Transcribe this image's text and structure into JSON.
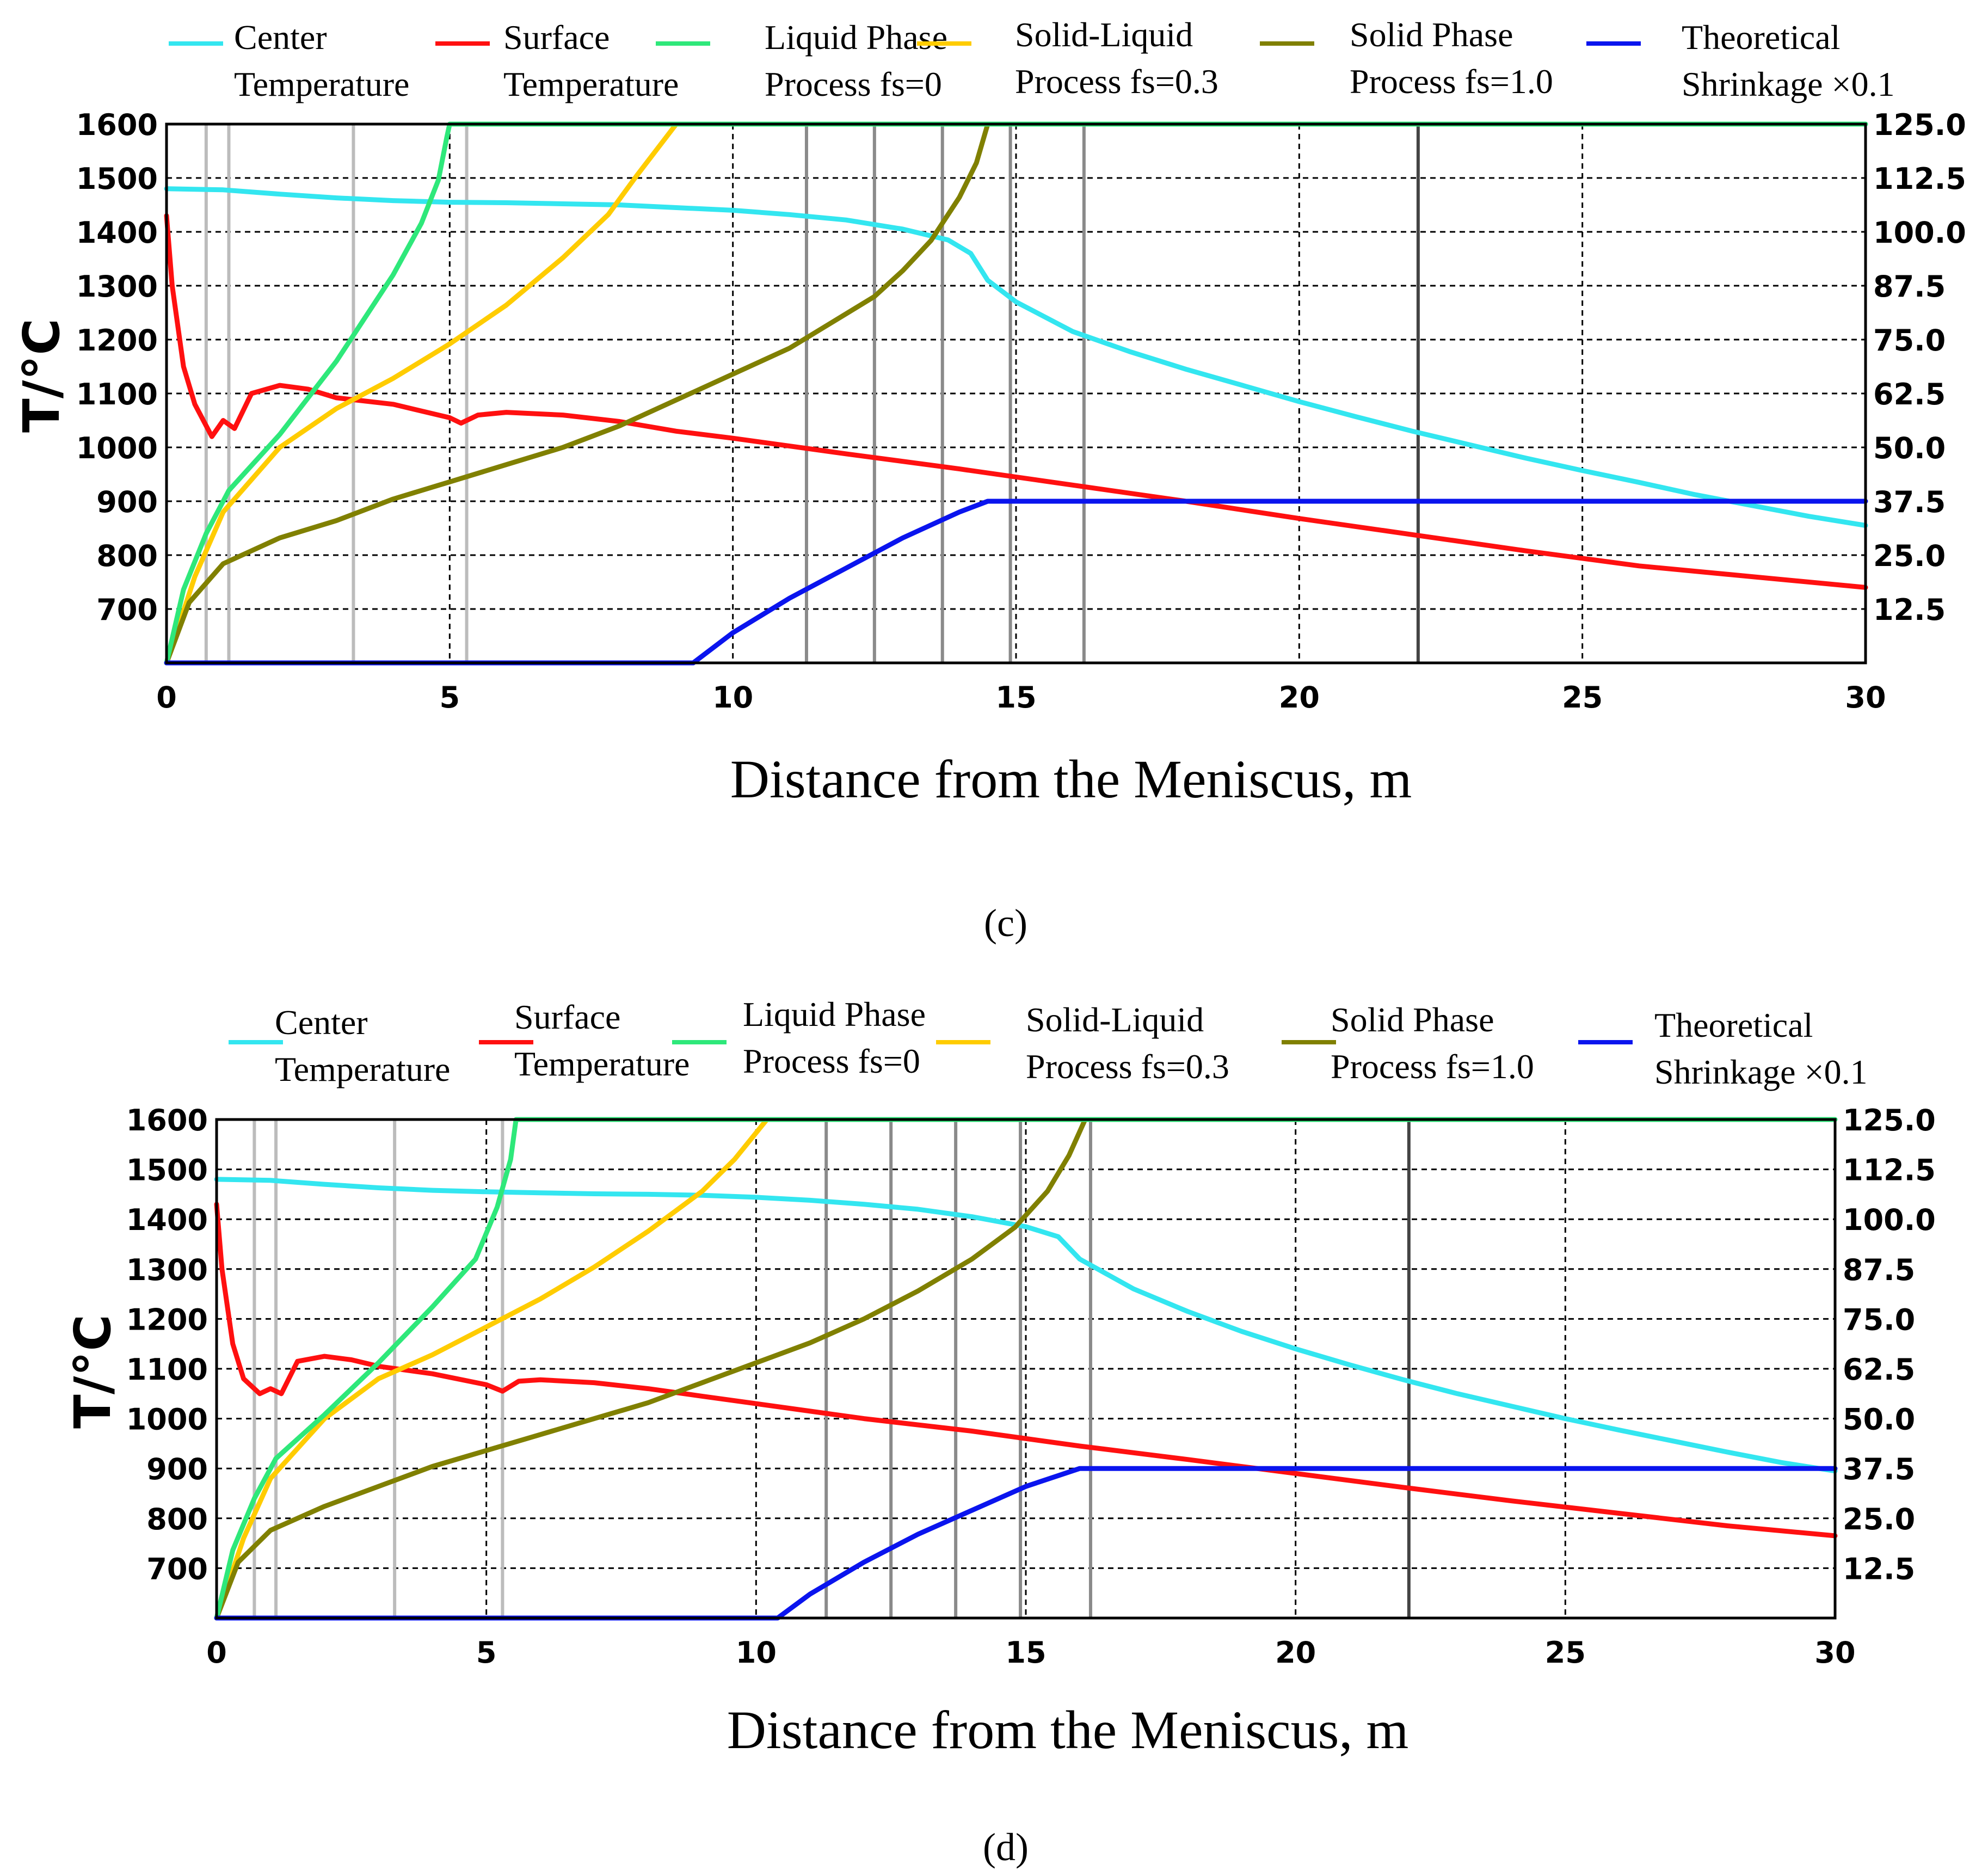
{
  "figure": {
    "panel_labels": [
      "(c)",
      "(d)"
    ]
  },
  "chart_data": [
    {
      "type": "line",
      "panel": "(c)",
      "title": "",
      "xlabel": "Distance from the Meniscus, m",
      "ylabel": "T/°C",
      "y2label": "",
      "xlim": [
        0,
        30
      ],
      "ylim": [
        600,
        1600
      ],
      "y2lim": [
        0,
        125
      ],
      "x_ticks": [
        0,
        5,
        10,
        15,
        20,
        25,
        30
      ],
      "y_ticks": [
        700,
        800,
        900,
        1000,
        1100,
        1200,
        1300,
        1400,
        1500,
        1600
      ],
      "y2_ticks": [
        "12.5",
        "25.0",
        "37.5",
        "50.0",
        "62.5",
        "75.0",
        "87.5",
        "100.0",
        "112.5",
        "125.0"
      ],
      "grid": "dashed",
      "legend_position": "top",
      "light_vlines": [
        0.7,
        1.1,
        3.3,
        5.3
      ],
      "dark_vlines": [
        11.3,
        12.5,
        13.7,
        14.9,
        16.2
      ],
      "black_vline": 22.1,
      "series": [
        {
          "name": "Center Temperature",
          "color": "#33e6f0",
          "axis": "left",
          "x": [
            0,
            1,
            2,
            3,
            4,
            5,
            6,
            7,
            8,
            9,
            10,
            11,
            12,
            13,
            13.8,
            14.2,
            14.5,
            15,
            16,
            17,
            18,
            19,
            20,
            21,
            22,
            23,
            24,
            25,
            26,
            27,
            28,
            29,
            30
          ],
          "y": [
            1480,
            1478,
            1470,
            1463,
            1458,
            1455,
            1454,
            1452,
            1450,
            1445,
            1440,
            1432,
            1422,
            1405,
            1385,
            1360,
            1310,
            1270,
            1215,
            1178,
            1145,
            1115,
            1085,
            1057,
            1030,
            1005,
            980,
            957,
            935,
            912,
            892,
            872,
            855
          ]
        },
        {
          "name": "Surface Temperature",
          "color": "#ff1010",
          "axis": "left",
          "x": [
            0,
            0.1,
            0.3,
            0.5,
            0.8,
            1.0,
            1.2,
            1.5,
            2.0,
            2.5,
            3,
            4,
            5,
            5.2,
            5.5,
            6,
            7,
            8,
            9,
            10,
            12,
            14,
            16,
            18,
            20,
            22,
            24,
            26,
            28,
            30
          ],
          "y": [
            1430,
            1300,
            1150,
            1080,
            1020,
            1050,
            1035,
            1100,
            1115,
            1108,
            1092,
            1080,
            1055,
            1045,
            1060,
            1065,
            1060,
            1048,
            1030,
            1017,
            988,
            960,
            930,
            900,
            868,
            838,
            808,
            780,
            760,
            740
          ]
        },
        {
          "name": "Liquid Phase Process fs=0",
          "color": "#2ee87a",
          "axis": "right",
          "x": [
            0,
            0.3,
            0.7,
            1.1,
            2.0,
            3.0,
            4.0,
            4.5,
            4.8,
            4.95,
            5.0,
            30
          ],
          "y2": [
            0,
            17,
            30,
            40,
            53,
            70,
            90,
            102,
            112,
            122,
            125,
            125
          ]
        },
        {
          "name": "Solid-Liquid Process fs=0.3",
          "color": "#ffcc00",
          "axis": "right",
          "x": [
            0,
            0.5,
            1,
            2,
            3,
            4,
            5,
            6,
            7,
            7.8,
            8.3,
            9.0
          ],
          "y2": [
            0,
            20,
            35,
            50,
            59,
            66,
            74,
            83,
            94,
            104,
            113,
            125
          ]
        },
        {
          "name": "Solid Phase Process fs=1.0",
          "color": "#808000",
          "axis": "right",
          "x": [
            0,
            0.4,
            1.0,
            2,
            3,
            4,
            5,
            6,
            7,
            8,
            9,
            10,
            11,
            12,
            12.5,
            13,
            13.5,
            14.0,
            14.3,
            14.5
          ],
          "y2": [
            0,
            14,
            23,
            29,
            33,
            38,
            42,
            46,
            50,
            55,
            61,
            67,
            73,
            81,
            85,
            91,
            98,
            108,
            116,
            125
          ]
        },
        {
          "name": "Theoretical Shrinkage ×0.1",
          "color": "#0a14ee",
          "axis": "right",
          "x": [
            0,
            9.3,
            10,
            11,
            12,
            13,
            14,
            14.5,
            30
          ],
          "y2": [
            0,
            0,
            7,
            15,
            22,
            29,
            35,
            37.5,
            37.5
          ]
        }
      ]
    },
    {
      "type": "line",
      "panel": "(d)",
      "title": "",
      "xlabel": "Distance from the Meniscus, m",
      "ylabel": "T/°C",
      "y2label": "",
      "xlim": [
        0,
        30
      ],
      "ylim": [
        600,
        1600
      ],
      "y2lim": [
        0,
        125
      ],
      "x_ticks": [
        0,
        5,
        10,
        15,
        20,
        25,
        30
      ],
      "y_ticks": [
        700,
        800,
        900,
        1000,
        1100,
        1200,
        1300,
        1400,
        1500,
        1600
      ],
      "y2_ticks": [
        "12.5",
        "25.0",
        "37.5",
        "50.0",
        "62.5",
        "75.0",
        "87.5",
        "100.0",
        "112.5",
        "125.0"
      ],
      "grid": "dashed",
      "legend_position": "top",
      "light_vlines": [
        0.7,
        1.1,
        3.3,
        5.3
      ],
      "dark_vlines": [
        11.3,
        12.5,
        13.7,
        14.9,
        16.2
      ],
      "black_vline": 22.1,
      "series": [
        {
          "name": "Center Temperature",
          "color": "#33e6f0",
          "axis": "left",
          "x": [
            0,
            1,
            2,
            3,
            4,
            5,
            6,
            7,
            8,
            9,
            10,
            11,
            12,
            13,
            14,
            15,
            15.6,
            16,
            17,
            18,
            19,
            20,
            21,
            22,
            23,
            24,
            25,
            26,
            27,
            28,
            29,
            30
          ],
          "y": [
            1480,
            1478,
            1470,
            1463,
            1458,
            1455,
            1453,
            1451,
            1450,
            1448,
            1444,
            1438,
            1430,
            1420,
            1405,
            1385,
            1365,
            1320,
            1260,
            1215,
            1175,
            1140,
            1108,
            1078,
            1050,
            1025,
            1000,
            977,
            955,
            933,
            912,
            895
          ]
        },
        {
          "name": "Surface Temperature",
          "color": "#ff1010",
          "axis": "left",
          "x": [
            0,
            0.1,
            0.3,
            0.5,
            0.8,
            1.0,
            1.2,
            1.5,
            2.0,
            2.5,
            3,
            4,
            5,
            5.3,
            5.6,
            6,
            7,
            8,
            9,
            10,
            12,
            14,
            16,
            18,
            20,
            22,
            24,
            26,
            28,
            30
          ],
          "y": [
            1430,
            1300,
            1150,
            1080,
            1050,
            1060,
            1050,
            1115,
            1125,
            1118,
            1105,
            1090,
            1068,
            1055,
            1075,
            1078,
            1072,
            1060,
            1045,
            1030,
            1000,
            975,
            945,
            918,
            890,
            862,
            835,
            810,
            785,
            765
          ]
        },
        {
          "name": "Liquid Phase Process fs=0",
          "color": "#2ee87a",
          "axis": "right",
          "x": [
            0,
            0.3,
            0.7,
            1.1,
            2.0,
            3.0,
            4.0,
            4.8,
            5.2,
            5.45,
            5.55,
            30
          ],
          "y2": [
            0,
            17,
            30,
            40,
            51,
            64,
            78,
            90,
            103,
            115,
            125,
            125
          ]
        },
        {
          "name": "Solid-Liquid Process fs=0.3",
          "color": "#ffcc00",
          "axis": "right",
          "x": [
            0,
            0.5,
            1,
            2,
            3,
            4,
            5,
            6,
            7,
            8,
            9,
            9.6,
            10.2
          ],
          "y2": [
            0,
            20,
            35,
            50,
            60,
            66,
            73,
            80,
            88,
            97,
            107,
            115,
            125
          ]
        },
        {
          "name": "Solid Phase Process fs=1.0",
          "color": "#808000",
          "axis": "right",
          "x": [
            0,
            0.4,
            1.0,
            2,
            3,
            4,
            5,
            6,
            7,
            8,
            9,
            10,
            11,
            12,
            13,
            14,
            14.8,
            15.4,
            15.8,
            16.1
          ],
          "y2": [
            0,
            14,
            22,
            28,
            33,
            38,
            42,
            46,
            50,
            54,
            59,
            64,
            69,
            75,
            82,
            90,
            98,
            107,
            116,
            125
          ]
        },
        {
          "name": "Theoretical Shrinkage ×0.1",
          "color": "#0a14ee",
          "axis": "right",
          "x": [
            0,
            10.4,
            11,
            12,
            13,
            14,
            15,
            16,
            30
          ],
          "y2": [
            0,
            0,
            6,
            14,
            21,
            27,
            33,
            37.5,
            37.5
          ]
        }
      ]
    }
  ]
}
